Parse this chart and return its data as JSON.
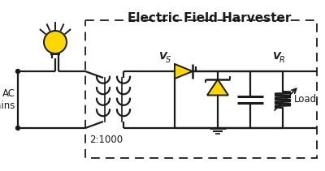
{
  "title": "Electric Field Harvester",
  "title_fontsize": 11,
  "bg_color": "#ffffff",
  "line_color": "#1a1a1a",
  "yellow_color": "#FFD700",
  "label_ac_mains": "AC\nMains",
  "label_ratio": "2:1000",
  "label_vs": "V",
  "label_vs_sub": "S",
  "label_vr": "V",
  "label_vr_sub": "R",
  "label_load": "Load"
}
